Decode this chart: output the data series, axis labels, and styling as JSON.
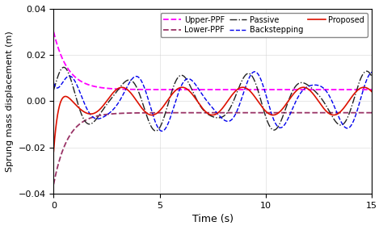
{
  "xlabel": "Time (s)",
  "ylabel": "Sprung mass displacement (m)",
  "xlim": [
    0,
    15
  ],
  "ylim": [
    -0.04,
    0.04
  ],
  "upper_ppf_color": "#FF00FF",
  "lower_ppf_color": "#993366",
  "passive_color": "#222222",
  "backstepping_color": "#0000EE",
  "proposed_color": "#DD1100",
  "xticks": [
    0,
    5,
    10,
    15
  ],
  "yticks": [
    -0.04,
    -0.02,
    0,
    0.02,
    0.04
  ],
  "upper_ppf_steady": 0.005,
  "upper_ppf_init": 0.03,
  "upper_ppf_decay": 1.5,
  "lower_ppf_steady": -0.005,
  "lower_ppf_init": -0.036,
  "lower_ppf_decay": 1.5,
  "freq1": 2.2,
  "freq2": 3.5
}
